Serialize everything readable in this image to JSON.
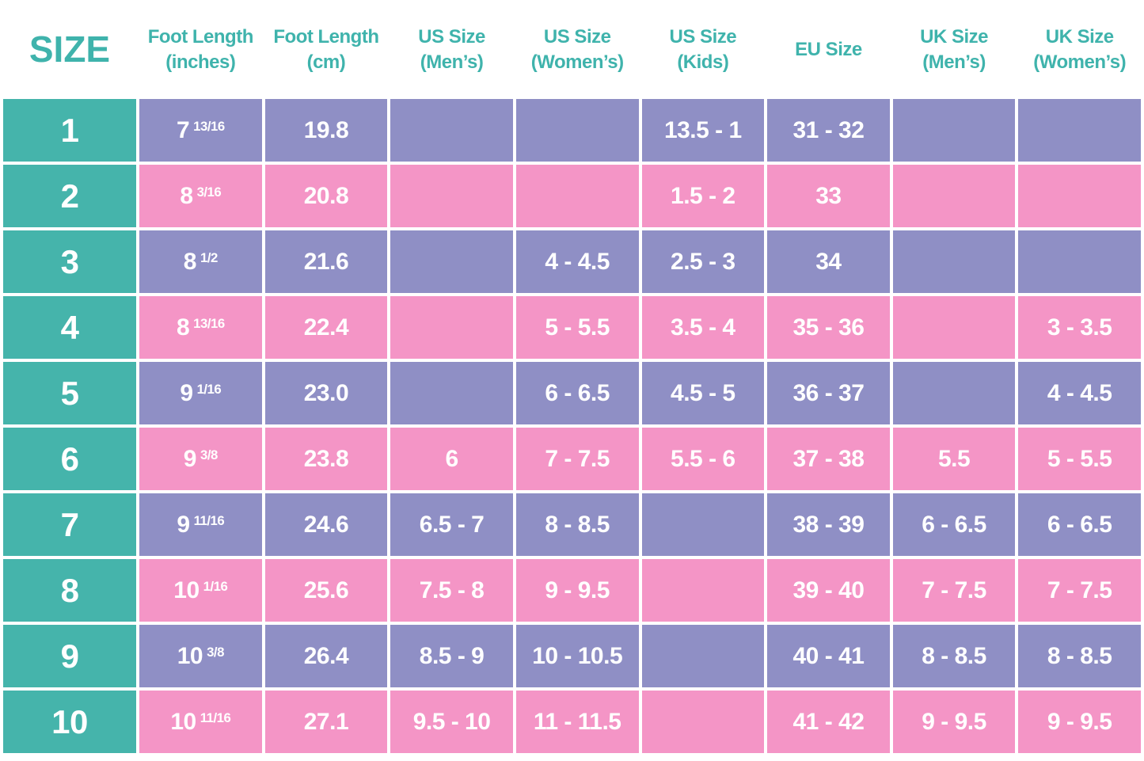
{
  "colors": {
    "teal": "#45B4AB",
    "header_text": "#3FB3AC",
    "purple": "#8F8FC5",
    "pink": "#F495C6",
    "cell_text": "#FFFFFF",
    "grid_background": "#FFFFFF"
  },
  "chart_data": {
    "type": "table",
    "columns": [
      {
        "id": "size",
        "lines": [
          "SIZE"
        ]
      },
      {
        "id": "foot_length_in",
        "lines": [
          "Foot Length",
          "(inches)"
        ]
      },
      {
        "id": "foot_length_cm",
        "lines": [
          "Foot Length",
          "(cm)"
        ]
      },
      {
        "id": "us_mens",
        "lines": [
          "US Size",
          "(Men’s)"
        ]
      },
      {
        "id": "us_womens",
        "lines": [
          "US Size",
          "(Women’s)"
        ]
      },
      {
        "id": "us_kids",
        "lines": [
          "US Size",
          "(Kids)"
        ]
      },
      {
        "id": "eu",
        "lines": [
          "EU Size"
        ]
      },
      {
        "id": "uk_mens",
        "lines": [
          "UK Size",
          "(Men’s)"
        ]
      },
      {
        "id": "uk_womens",
        "lines": [
          "UK Size",
          "(Women’s)"
        ]
      }
    ],
    "rows": [
      {
        "size": "1",
        "inches_whole": "7",
        "inches_frac": "13/16",
        "cm": "19.8",
        "us_mens": "",
        "us_womens": "",
        "us_kids": "13.5 - 1",
        "eu": "31 - 32",
        "uk_mens": "",
        "uk_womens": ""
      },
      {
        "size": "2",
        "inches_whole": "8",
        "inches_frac": "3/16",
        "cm": "20.8",
        "us_mens": "",
        "us_womens": "",
        "us_kids": "1.5 - 2",
        "eu": "33",
        "uk_mens": "",
        "uk_womens": ""
      },
      {
        "size": "3",
        "inches_whole": "8",
        "inches_frac": "1/2",
        "cm": "21.6",
        "us_mens": "",
        "us_womens": "4 - 4.5",
        "us_kids": "2.5 - 3",
        "eu": "34",
        "uk_mens": "",
        "uk_womens": ""
      },
      {
        "size": "4",
        "inches_whole": "8",
        "inches_frac": "13/16",
        "cm": "22.4",
        "us_mens": "",
        "us_womens": "5 - 5.5",
        "us_kids": "3.5 - 4",
        "eu": "35 - 36",
        "uk_mens": "",
        "uk_womens": "3 - 3.5"
      },
      {
        "size": "5",
        "inches_whole": "9",
        "inches_frac": "1/16",
        "cm": "23.0",
        "us_mens": "",
        "us_womens": "6 - 6.5",
        "us_kids": "4.5 - 5",
        "eu": "36 - 37",
        "uk_mens": "",
        "uk_womens": "4 - 4.5"
      },
      {
        "size": "6",
        "inches_whole": "9",
        "inches_frac": "3/8",
        "cm": "23.8",
        "us_mens": "6",
        "us_womens": "7 - 7.5",
        "us_kids": "5.5 - 6",
        "eu": "37 - 38",
        "uk_mens": "5.5",
        "uk_womens": "5 - 5.5"
      },
      {
        "size": "7",
        "inches_whole": "9",
        "inches_frac": "11/16",
        "cm": "24.6",
        "us_mens": "6.5 - 7",
        "us_womens": "8 - 8.5",
        "us_kids": "",
        "eu": "38 - 39",
        "uk_mens": "6 - 6.5",
        "uk_womens": "6 - 6.5"
      },
      {
        "size": "8",
        "inches_whole": "10",
        "inches_frac": "1/16",
        "cm": "25.6",
        "us_mens": "7.5 - 8",
        "us_womens": "9 - 9.5",
        "us_kids": "",
        "eu": "39 - 40",
        "uk_mens": "7 - 7.5",
        "uk_womens": "7 - 7.5"
      },
      {
        "size": "9",
        "inches_whole": "10",
        "inches_frac": "3/8",
        "cm": "26.4",
        "us_mens": "8.5 - 9",
        "us_womens": "10 - 10.5",
        "us_kids": "",
        "eu": "40 - 41",
        "uk_mens": "8 - 8.5",
        "uk_womens": "8 - 8.5"
      },
      {
        "size": "10",
        "inches_whole": "10",
        "inches_frac": "11/16",
        "cm": "27.1",
        "us_mens": "9.5 - 10",
        "us_womens": "11 - 11.5",
        "us_kids": "",
        "eu": "41 - 42",
        "uk_mens": "9 - 9.5",
        "uk_womens": "9 - 9.5"
      }
    ]
  }
}
